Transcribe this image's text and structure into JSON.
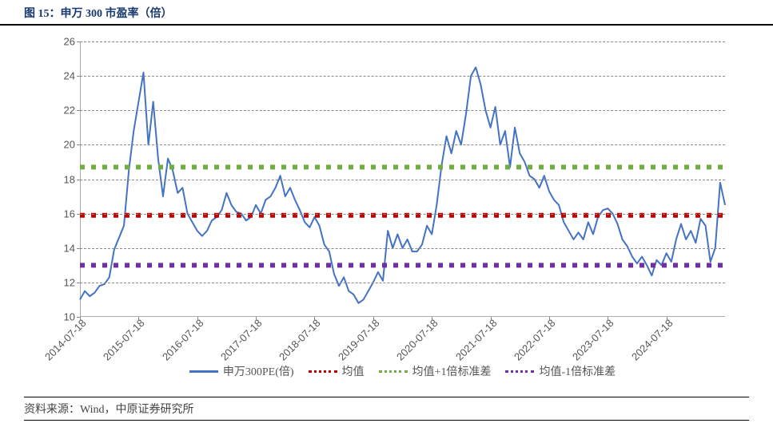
{
  "title": "图 15：申万 300 市盈率（倍）",
  "footer": "资料来源：Wind，中原证券研究所",
  "chart": {
    "type": "line",
    "background_color": "#ffffff",
    "grid_color": "#888888",
    "grid_style": "dashed",
    "axis_color": "#aaaaaa",
    "label_color": "#555555",
    "label_fontsize": 13,
    "x_label_rotation": -45,
    "ylim": [
      10,
      26
    ],
    "ytick_step": 2,
    "y_ticks": [
      10,
      12,
      14,
      16,
      18,
      20,
      22,
      24,
      26
    ],
    "x_categories": [
      "2014-07-18",
      "2015-07-18",
      "2016-07-18",
      "2017-07-18",
      "2018-07-18",
      "2019-07-18",
      "2020-07-18",
      "2021-07-18",
      "2022-07-18",
      "2023-07-18",
      "2024-07-18"
    ],
    "x_domain_units": 132,
    "mean_value": 15.9,
    "std_plus1_value": 18.7,
    "std_minus1_value": 13.0,
    "series": [
      {
        "id": "pe",
        "name": "申万300PE(倍)",
        "color": "#4472c4",
        "line_width": 2,
        "dash": null,
        "data": [
          11.0,
          11.5,
          11.2,
          11.4,
          11.8,
          11.9,
          12.3,
          13.9,
          14.6,
          15.3,
          18.5,
          20.8,
          22.5,
          24.2,
          20.0,
          22.5,
          19.2,
          17.0,
          19.2,
          18.5,
          17.2,
          17.5,
          16.0,
          15.5,
          15.0,
          14.7,
          15.0,
          15.6,
          15.8,
          16.2,
          17.2,
          16.5,
          16.1,
          16.0,
          15.6,
          15.8,
          16.5,
          16.0,
          16.8,
          17.0,
          17.5,
          18.2,
          17.0,
          17.5,
          16.8,
          16.2,
          15.5,
          15.2,
          15.8,
          15.3,
          14.2,
          13.8,
          12.5,
          11.8,
          12.3,
          11.5,
          11.3,
          10.8,
          11.0,
          11.5,
          12.0,
          12.6,
          12.1,
          15.0,
          14.0,
          14.8,
          14.0,
          14.5,
          13.8,
          13.8,
          14.2,
          15.3,
          14.8,
          16.5,
          18.8,
          20.5,
          19.5,
          20.8,
          20.0,
          21.8,
          24.0,
          24.5,
          23.5,
          22.0,
          21.0,
          22.2,
          20.0,
          20.8,
          18.7,
          21.0,
          19.5,
          19.0,
          18.2,
          18.0,
          17.5,
          18.2,
          17.3,
          16.8,
          16.5,
          15.5,
          15.0,
          14.5,
          14.9,
          14.5,
          15.5,
          14.8,
          15.8,
          16.2,
          16.3,
          16.0,
          15.4,
          14.5,
          14.1,
          13.5,
          13.1,
          13.5,
          13.0,
          12.4,
          13.3,
          13.0,
          13.7,
          13.2,
          14.5,
          15.4,
          14.5,
          15.0,
          14.3,
          15.7,
          15.3,
          13.2,
          14.0,
          17.8,
          16.5
        ]
      },
      {
        "id": "mean",
        "name": "均值",
        "color": "#c00000",
        "line_width": 2,
        "dash": "2,3",
        "constant": 15.9
      },
      {
        "id": "stdplus",
        "name": "均值+1倍标准差",
        "color": "#70ad47",
        "line_width": 2,
        "dash": "2,3",
        "constant": 18.7
      },
      {
        "id": "stdminus",
        "name": "均值-1倍标准差",
        "color": "#7030a0",
        "line_width": 2,
        "dash": "2,3",
        "constant": 13.0
      }
    ],
    "legend_items": [
      {
        "label": "申万300PE(倍)",
        "color": "#4472c4",
        "dash": null
      },
      {
        "label": "均值",
        "color": "#c00000",
        "dash": "2,3"
      },
      {
        "label": "均值+1倍标准差",
        "color": "#70ad47",
        "dash": "2,3"
      },
      {
        "label": "均值-1倍标准差",
        "color": "#7030a0",
        "dash": "2,3"
      }
    ]
  }
}
